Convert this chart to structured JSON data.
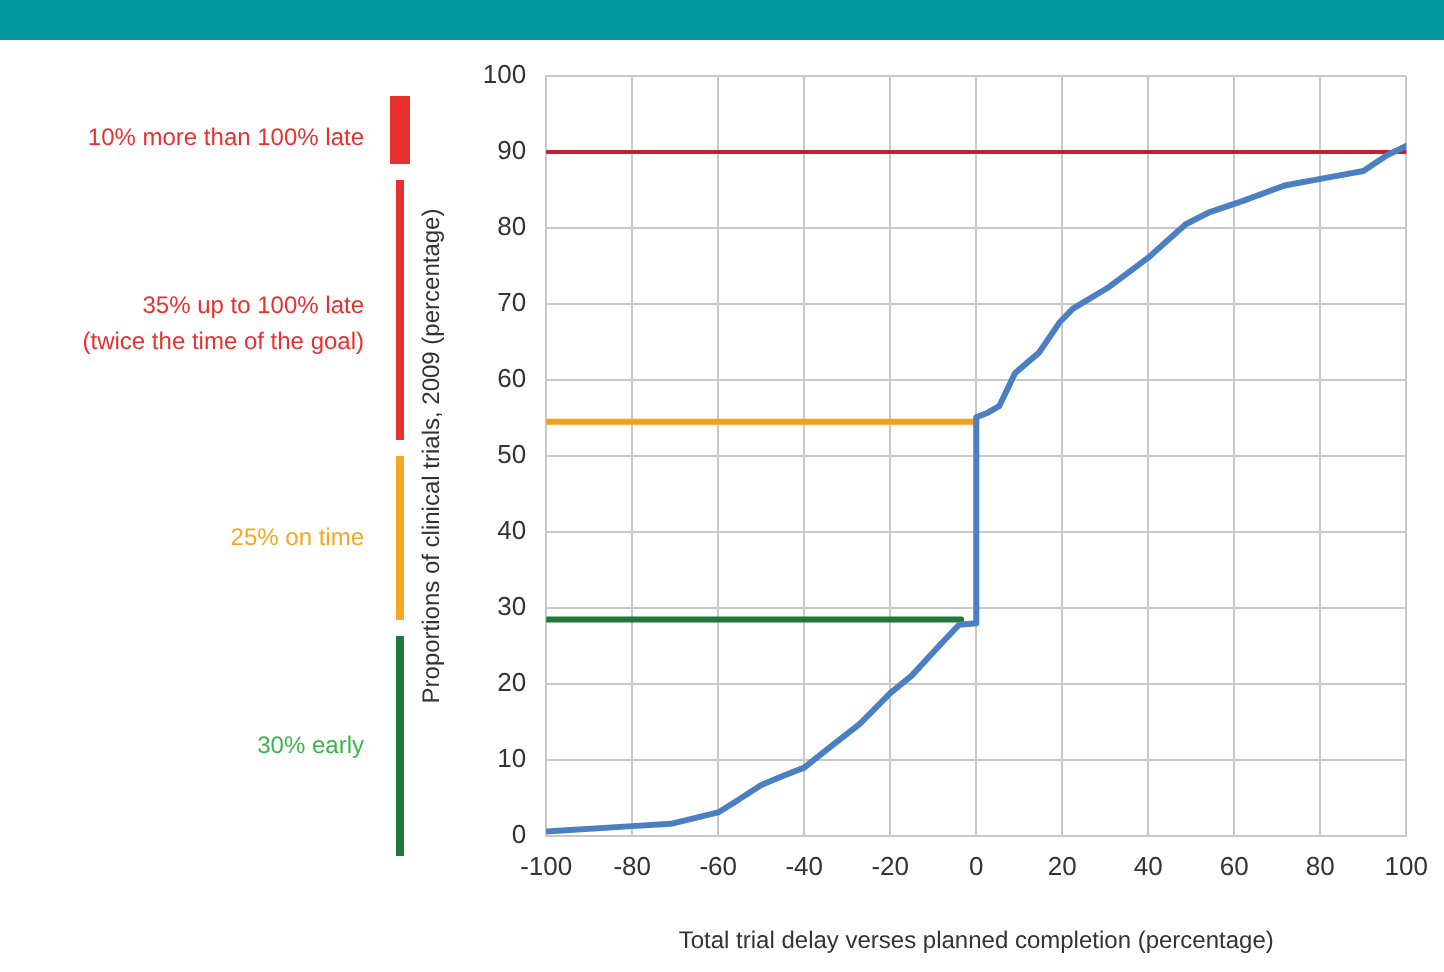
{
  "chart_data": {
    "type": "line",
    "xlabel": "Total trial delay verses planned completion (percentage)",
    "ylabel": "Proportions of clinical trials, 2009 (percentage)",
    "xlim": [
      -100,
      100
    ],
    "xticks": [
      -100,
      -80,
      -60,
      -40,
      -20,
      0,
      20,
      40,
      60,
      80,
      100
    ],
    "ylim": [
      0,
      100
    ],
    "yticks": [
      0,
      10,
      20,
      30,
      40,
      50,
      60,
      70,
      80,
      90,
      100
    ],
    "grid": true,
    "legend": false,
    "marker": "none",
    "line_style": "solid",
    "series": [
      {
        "color": "#4a7fc1",
        "x": [
          -100,
          -80,
          -71,
          -60,
          -56,
          -50,
          -45,
          -40,
          -34,
          -27,
          -20,
          -15,
          -8.5,
          -4,
          0,
          0,
          2.7,
          5.4,
          9,
          14.6,
          19.4,
          22.5,
          30.5,
          40,
          48.7,
          54.3,
          62.2,
          71.7,
          81.3,
          90,
          95.6,
          100
        ],
        "values": [
          0.6,
          1.3,
          1.6,
          3.1,
          4.5,
          6.7,
          7.9,
          9,
          11.7,
          14.8,
          18.8,
          21.1,
          25.1,
          27.8,
          28,
          55.1,
          55.7,
          56.6,
          60.9,
          63.6,
          67.6,
          69.4,
          72.1,
          76.1,
          80.5,
          82.1,
          83.6,
          85.6,
          86.6,
          87.5,
          89.6,
          90.8
        ]
      },
      {
        "color": "#f5a01a",
        "x": [
          -100,
          0
        ],
        "values": [
          54.5,
          54.5
        ]
      },
      {
        "color": "#1f7a3a",
        "x": [
          -100,
          -3.5
        ],
        "values": [
          28.5,
          28.5
        ]
      }
    ],
    "ref_lines": [
      {
        "axis": "y",
        "value": 90,
        "color": "#c0202f"
      }
    ],
    "annotations": [
      "10% more than 100% late",
      "35% up to 100% late\n(twice the time of the goal)",
      "25% on time",
      "30% early"
    ]
  }
}
